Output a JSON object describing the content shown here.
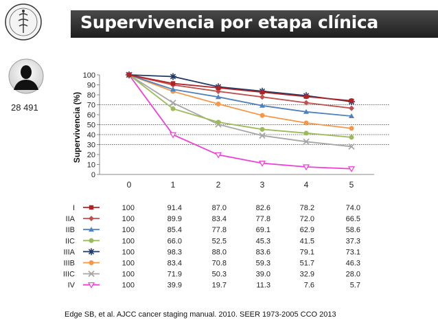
{
  "title": "Supervivencia por etapa clínica",
  "patient_count": "28 491",
  "footer": "Edge SB, et al. AJCC cancer staging manual. 2010. SEER 1973-2005 CCO 2013",
  "chart_data": {
    "type": "line",
    "ylabel": "Supervivencia (%)",
    "xlabel": "",
    "x": [
      0,
      1,
      2,
      3,
      4,
      5
    ],
    "x_tick_labels": [
      "0",
      "1",
      "2",
      "3",
      "4",
      "5"
    ],
    "ylim": [
      0,
      100
    ],
    "y_ticks": [
      0,
      10,
      20,
      30,
      40,
      50,
      60,
      70,
      80,
      90,
      100
    ],
    "reference_lines": [
      70,
      50,
      40,
      30
    ],
    "legend_position": "bottom table",
    "series": [
      {
        "name": "I",
        "color": "#b22222",
        "marker": "square",
        "values": [
          100,
          91.4,
          87.0,
          82.6,
          78.2,
          74.0
        ],
        "labels": [
          "100",
          "91.4",
          "87.0",
          "82.6",
          "78.2",
          "74.0"
        ]
      },
      {
        "name": "IIA",
        "color": "#c0504d",
        "marker": "diamond",
        "values": [
          100,
          89.9,
          83.4,
          77.8,
          72.0,
          66.5
        ],
        "labels": [
          "100",
          "89.9",
          "83.4",
          "77.8",
          "72.0",
          "66.5"
        ]
      },
      {
        "name": "IIB",
        "color": "#4f81bd",
        "marker": "triangle",
        "values": [
          100,
          85.4,
          77.8,
          69.1,
          62.9,
          58.6
        ],
        "labels": [
          "100",
          "85.4",
          "77.8",
          "69.1",
          "62.9",
          "58.6"
        ]
      },
      {
        "name": "IIC",
        "color": "#9bbb59",
        "marker": "circle",
        "values": [
          100,
          66.0,
          52.5,
          45.3,
          41.5,
          37.3
        ],
        "labels": [
          "100",
          "66.0",
          "52.5",
          "45.3",
          "41.5",
          "37.3"
        ]
      },
      {
        "name": "IIIA",
        "color": "#1f3864",
        "marker": "star",
        "values": [
          100,
          98.3,
          88.0,
          83.6,
          79.1,
          73.1
        ],
        "labels": [
          "100",
          "98.3",
          "88.0",
          "83.6",
          "79.1",
          "73.1"
        ]
      },
      {
        "name": "IIIB",
        "color": "#f79646",
        "marker": "circle",
        "values": [
          100,
          83.4,
          70.8,
          59.3,
          51.7,
          46.3
        ],
        "labels": [
          "100",
          "83.4",
          "70.8",
          "59.3",
          "51.7",
          "46.3"
        ]
      },
      {
        "name": "IIIC",
        "color": "#a6a6a6",
        "marker": "x",
        "values": [
          100,
          71.9,
          50.3,
          39.0,
          32.9,
          28.0
        ],
        "labels": [
          "100",
          "71.9",
          "50.3",
          "39.0",
          "32.9",
          "28.0"
        ]
      },
      {
        "name": "IV",
        "color": "#ee3fd6",
        "marker": "tri-down",
        "values": [
          100,
          39.9,
          19.7,
          11.3,
          7.6,
          5.7
        ],
        "labels": [
          "100",
          "39.9",
          "19.7",
          "11.3",
          "7.6",
          "5.7"
        ]
      }
    ]
  }
}
